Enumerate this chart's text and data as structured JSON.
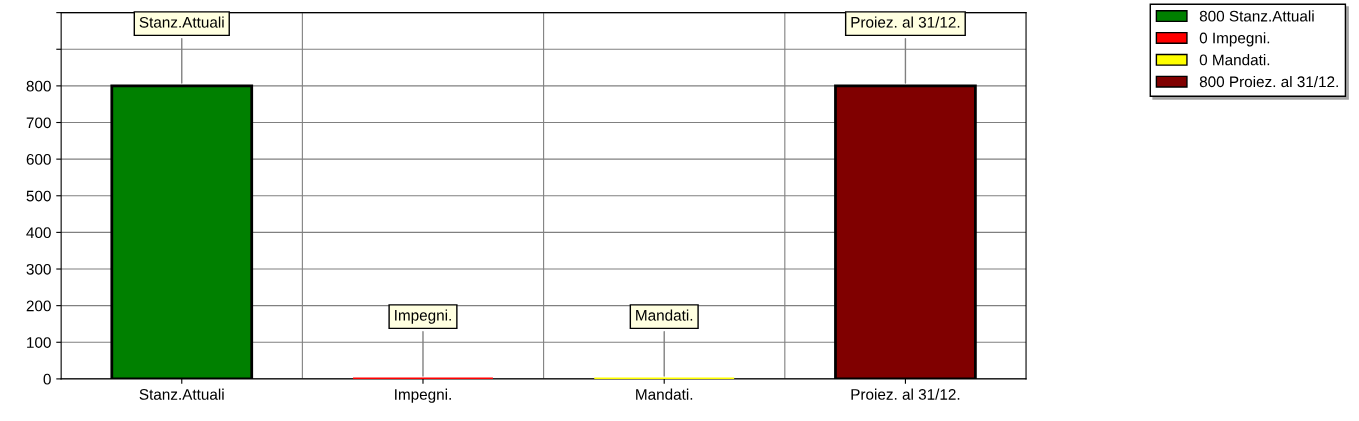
{
  "chart_data": {
    "type": "bar",
    "categories": [
      "Stanz.Attuali",
      "Impegni.",
      "Mandati.",
      "Proiez. al 31/12."
    ],
    "series": [
      {
        "name": "800 Stanz.Attuali",
        "color": "#008000",
        "values": [
          800,
          null,
          null,
          null
        ]
      },
      {
        "name": "0 Impegni.",
        "color": "#ff0000",
        "values": [
          null,
          0,
          null,
          null
        ]
      },
      {
        "name": "0 Mandati.",
        "color": "#ffff00",
        "values": [
          null,
          null,
          0,
          null
        ]
      },
      {
        "name": "800 Proiez. al 31/12.",
        "color": "#800000",
        "values": [
          null,
          null,
          null,
          800
        ]
      }
    ],
    "ylim": [
      0,
      1000
    ],
    "yticks": [
      0,
      100,
      200,
      300,
      400,
      500,
      600,
      700,
      800,
      {
        "value": 900,
        "label": null
      },
      {
        "value": 1000,
        "label": null
      }
    ],
    "grid": true,
    "legend": "top right",
    "annotations": [
      {
        "text": "Stanz.Attuali",
        "x": "Stanz.Attuali",
        "y": 800
      },
      {
        "text": "Impegni.",
        "x": "Impegni.",
        "y": 0
      },
      {
        "text": "Mandati.",
        "x": "Mandati.",
        "y": 0
      },
      {
        "text": "Proiez. al 31/12.",
        "x": "Proiez. al 31/12.",
        "y": 800
      }
    ]
  }
}
